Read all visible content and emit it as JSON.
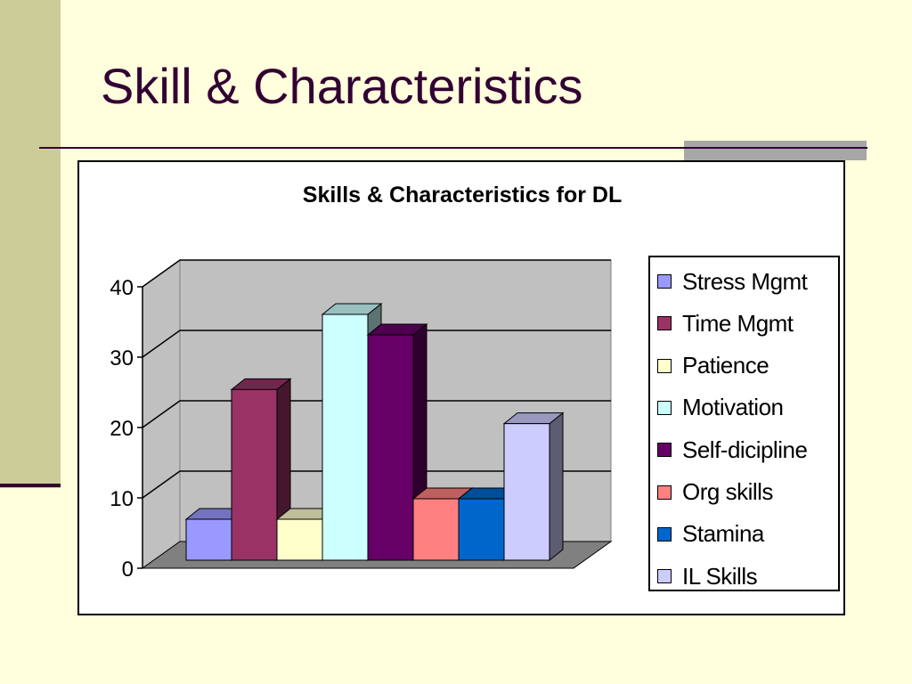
{
  "slide": {
    "title": "Skill & Characteristics",
    "colors": {
      "background": "#FFFFDD",
      "band": "#CCCC99",
      "title": "#330033",
      "accent": "#A7A7A7"
    }
  },
  "chart_data": {
    "type": "bar",
    "title": "Skills & Characteristics for DL",
    "xlabel": "",
    "ylabel": "",
    "ylim": [
      0,
      40
    ],
    "yticks": [
      0,
      10,
      20,
      30,
      40
    ],
    "grid": true,
    "three_d": true,
    "legend_position": "right",
    "series": [
      {
        "name": "Stress Mgmt",
        "value": 6,
        "color": "#9999FF"
      },
      {
        "name": "Time Mgmt",
        "value": 25,
        "color": "#993366"
      },
      {
        "name": "Patience",
        "value": 6,
        "color": "#FFFFCC"
      },
      {
        "name": "Motivation",
        "value": 36,
        "color": "#CCFFFF"
      },
      {
        "name": "Self-dicipline",
        "value": 33,
        "color": "#660066"
      },
      {
        "name": "Org skills",
        "value": 9,
        "color": "#FF8080"
      },
      {
        "name": "Stamina",
        "value": 9,
        "color": "#0066CC"
      },
      {
        "name": "IL Skills",
        "value": 20,
        "color": "#CCCCFF"
      }
    ]
  }
}
